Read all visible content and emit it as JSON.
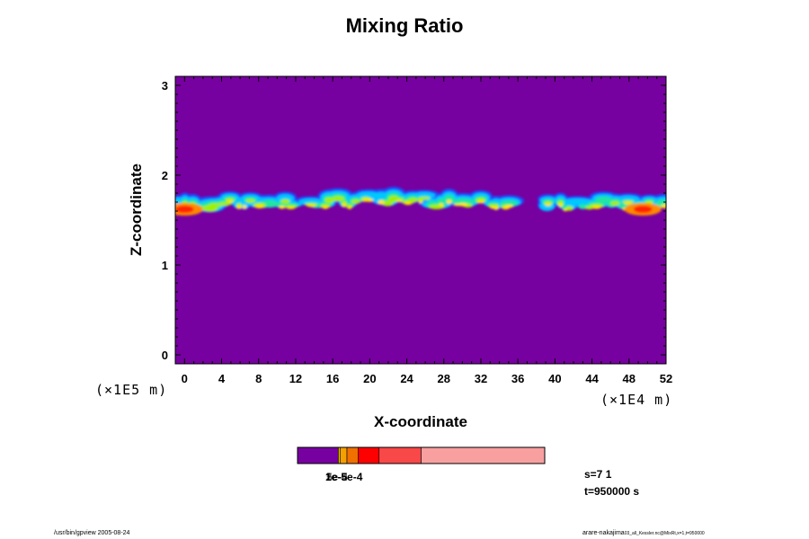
{
  "chart_data": {
    "type": "heatmap",
    "title": "Mixing Ratio",
    "xlabel": "X-coordinate",
    "ylabel": "Z-coordinate",
    "x_scale_label": "(×1E4 m)",
    "y_scale_label": "(×1E5 m)",
    "xlim": [
      -1,
      52
    ],
    "ylim": [
      -0.1,
      3.1
    ],
    "xticks": [
      0,
      4,
      8,
      12,
      16,
      20,
      24,
      28,
      32,
      36,
      40,
      44,
      48,
      52
    ],
    "yticks": [
      0,
      1,
      2,
      3
    ],
    "background_level_color": "#7700a0",
    "cloud_regions": [
      {
        "x_start": -1,
        "x_end": 12,
        "z_center": 1.72,
        "peak": "high"
      },
      {
        "x_start": 13.5,
        "x_end": 35.5,
        "z_center": 1.74,
        "peak": "medium"
      },
      {
        "x_start": 38.5,
        "x_end": 52,
        "z_center": 1.72,
        "peak": "high"
      }
    ],
    "colorbar": {
      "colors": [
        "#7700a0",
        "#e0c000",
        "#f5a000",
        "#f07000",
        "#ff0000",
        "#f84848",
        "#f8a0a0"
      ],
      "tick_label_text": "1e-5e-4",
      "overlapping_labels": [
        "1e-5",
        "2e-5",
        "5e-4"
      ]
    },
    "info": {
      "s": "s=7 1",
      "t": "t=950000 s"
    }
  },
  "footer": {
    "left": "/usr/bin/gpview 2005-08-24",
    "right_main": "arare-nakajima",
    "right_small": "03_all_Kessler.nc@MixRt,x=1,t=950000"
  }
}
